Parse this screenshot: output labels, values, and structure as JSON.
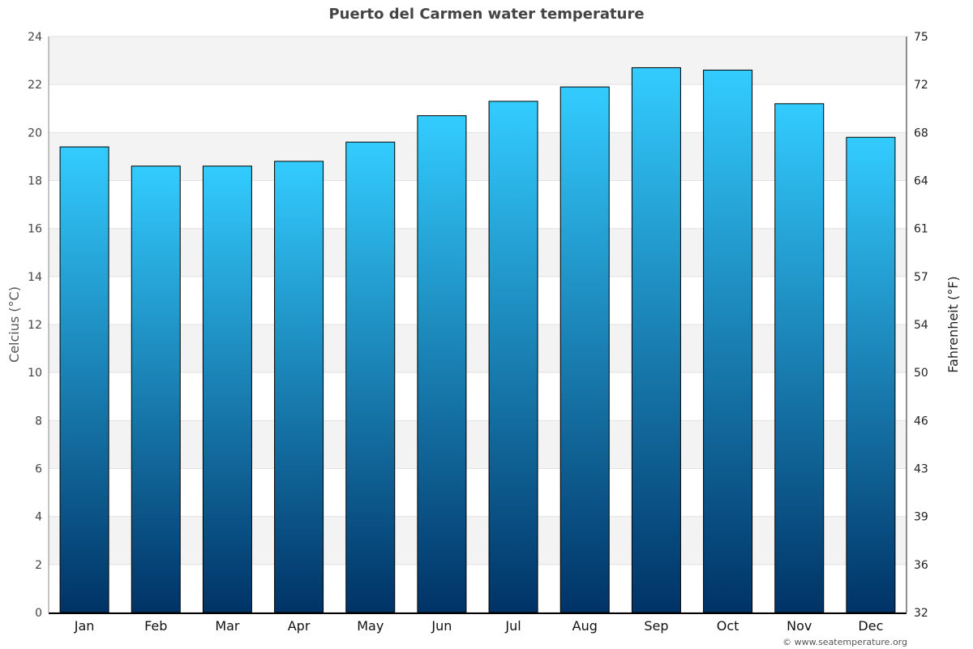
{
  "chart_data": {
    "type": "bar",
    "title": "Puerto del Carmen water temperature",
    "categories": [
      "Jan",
      "Feb",
      "Mar",
      "Apr",
      "May",
      "Jun",
      "Jul",
      "Aug",
      "Sep",
      "Oct",
      "Nov",
      "Dec"
    ],
    "values": [
      19.4,
      18.6,
      18.6,
      18.8,
      19.6,
      20.7,
      21.3,
      21.9,
      22.7,
      22.6,
      21.2,
      19.8
    ],
    "ylabel": "Celcius (°C)",
    "y2label": "Fahrenheit (°F)",
    "ylim": [
      0,
      24
    ],
    "yticks": [
      0,
      2,
      4,
      6,
      8,
      10,
      12,
      14,
      16,
      18,
      20,
      22,
      24
    ],
    "y2ticks": [
      "32",
      "36",
      "39",
      "43",
      "46",
      "50",
      "54",
      "57",
      "61",
      "64",
      "68",
      "72",
      "75"
    ],
    "grid": true,
    "colors": {
      "bar_top": "#33ccff",
      "bar_bottom": "#003366",
      "band": "#f3f3f3"
    }
  },
  "credit": "© www.seatemperature.org"
}
